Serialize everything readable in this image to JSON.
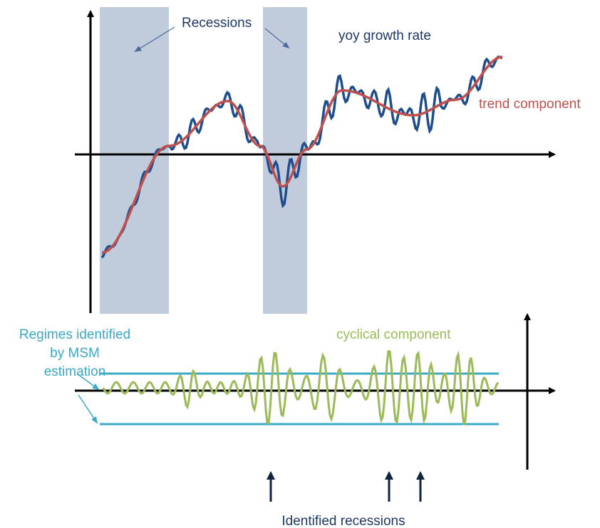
{
  "labels": {
    "recessions": "Recessions",
    "yoy_growth_rate": "yoy growth rate",
    "trend_component": "trend component",
    "regimes": [
      "Regimes identified",
      "by MSM",
      "estimation"
    ],
    "cyclical_component": "cyclical component",
    "identified_recessions": "Identified recessions"
  }
}
